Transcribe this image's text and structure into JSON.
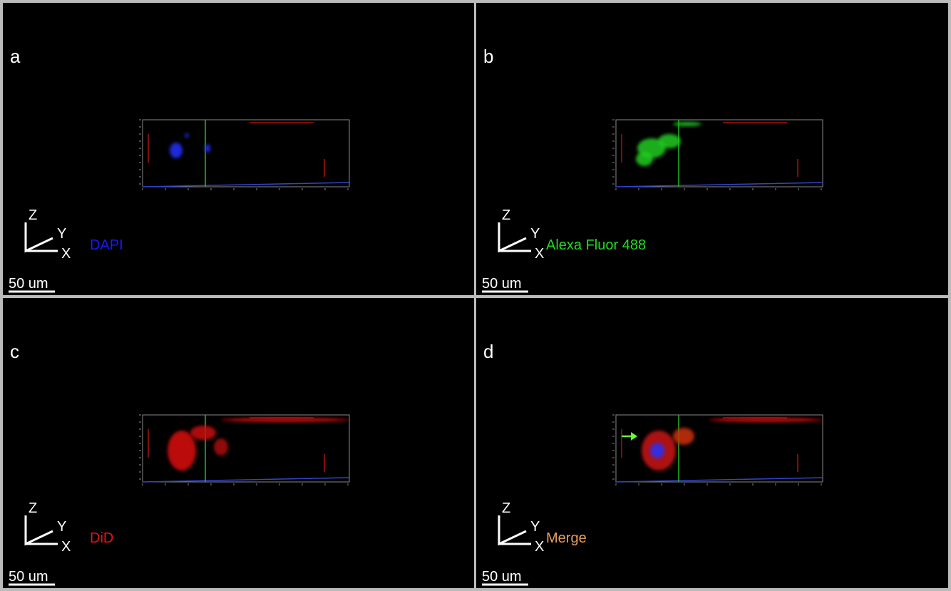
{
  "panels": [
    {
      "letter": "a",
      "channel": "DAPI",
      "color": "#1a1aff",
      "scale": "50 um",
      "axes": {
        "z": "Z",
        "y": "Y",
        "x": "X"
      }
    },
    {
      "letter": "b",
      "channel": "Alexa Fluor 488",
      "color": "#22dd22",
      "scale": "50 um",
      "axes": {
        "z": "Z",
        "y": "Y",
        "x": "X"
      }
    },
    {
      "letter": "c",
      "channel": "DiD",
      "color": "#ee1111",
      "scale": "50 um",
      "axes": {
        "z": "Z",
        "y": "Y",
        "x": "X"
      }
    },
    {
      "letter": "d",
      "channel": "Merge",
      "color": "#e8a060",
      "scale": "50 um",
      "axes": {
        "z": "Z",
        "y": "Y",
        "x": "X"
      }
    }
  ]
}
